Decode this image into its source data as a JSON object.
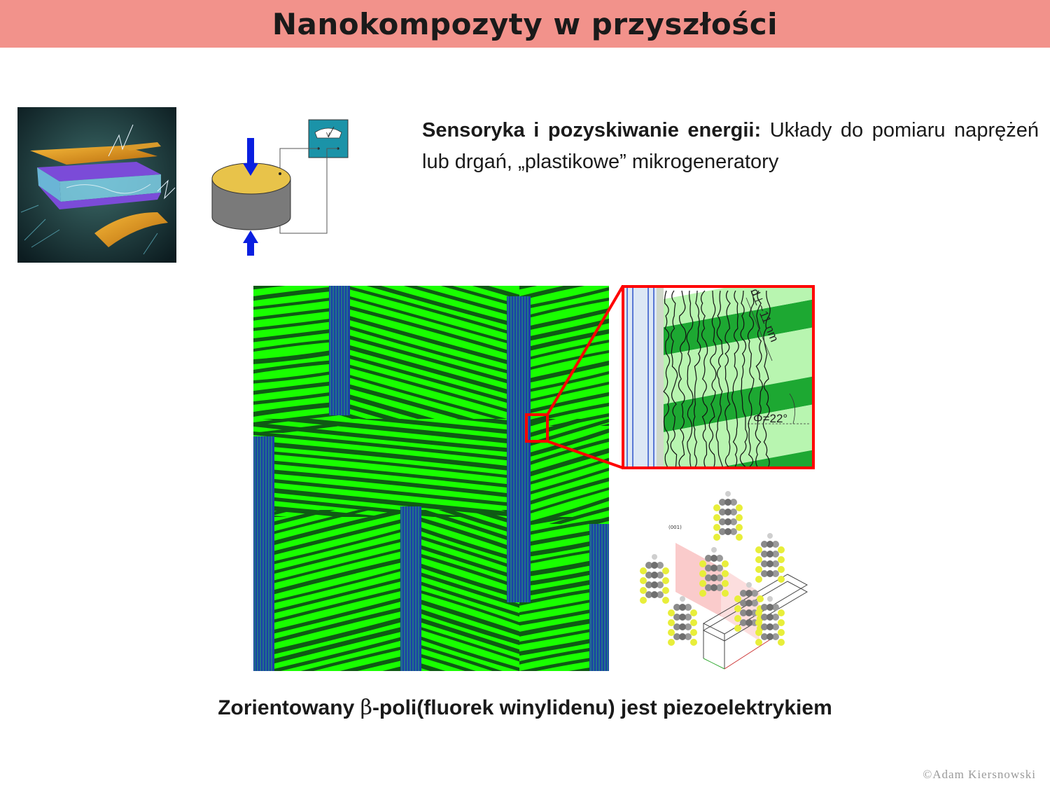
{
  "slide": {
    "title": "Nanokompozyty w przyszłości",
    "intro_bold": "Sensoryka i pozyskiwanie energii:",
    "intro_text": " Układy do pomiaru naprężeń lub drgań, „plastikowe” mikrogeneratory",
    "caption_before": "Zorientowany ",
    "caption_greek": "β",
    "caption_after": "-poli(fluorek winylidenu) jest piezoelektrykiem",
    "copyright": "©Adam Kiersnowski"
  },
  "figures": {
    "voltmeter_label": "V",
    "zoom_period_label": "d⊥~11 nm",
    "zoom_angle_label": "Φ=22°",
    "crystal_plane_label": "(001)"
  },
  "colors": {
    "title_bar": "#f2928b",
    "lamella_green": "#19ff00",
    "lamella_dark": "#0f5a14",
    "crystal_blue": "#1b3fa8",
    "zoom_frame": "#ff0000",
    "arrow_blue": "#0a1fe0",
    "disk_top": "#e8c34a",
    "disk_side": "#7a7a7a",
    "meter_teal": "#1b93a8"
  }
}
